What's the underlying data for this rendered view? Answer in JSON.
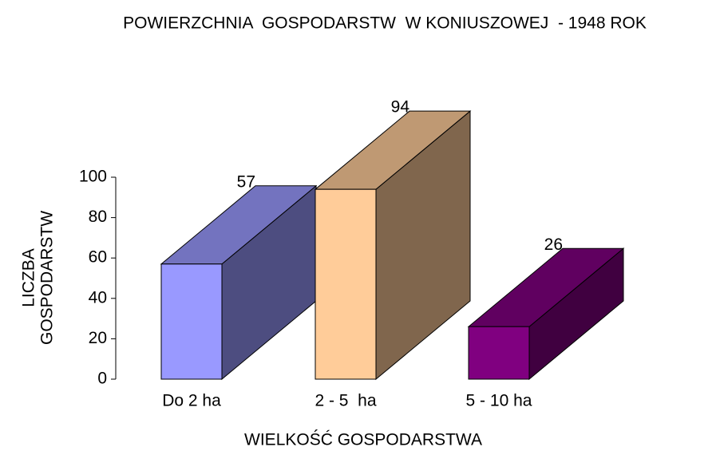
{
  "chart_data": {
    "type": "bar3d",
    "title": "POWIERZCHNIA  GOSPODARSTW  W KONIUSZOWEJ  - 1948 ROK",
    "xlabel": "WIELKOŚĆ GOSPODARSTWA",
    "ylabel": [
      "LICZBA",
      "GOSPODARSTW"
    ],
    "categories": [
      "Do 2 ha",
      "2 - 5  ha",
      "5 - 10 ha"
    ],
    "values": [
      57,
      94,
      26
    ],
    "colors": [
      "#9999ff",
      "#ffcc99",
      "#800080"
    ],
    "ylim": [
      0,
      100
    ],
    "yticks": [
      0,
      20,
      40,
      60,
      80,
      100
    ]
  }
}
